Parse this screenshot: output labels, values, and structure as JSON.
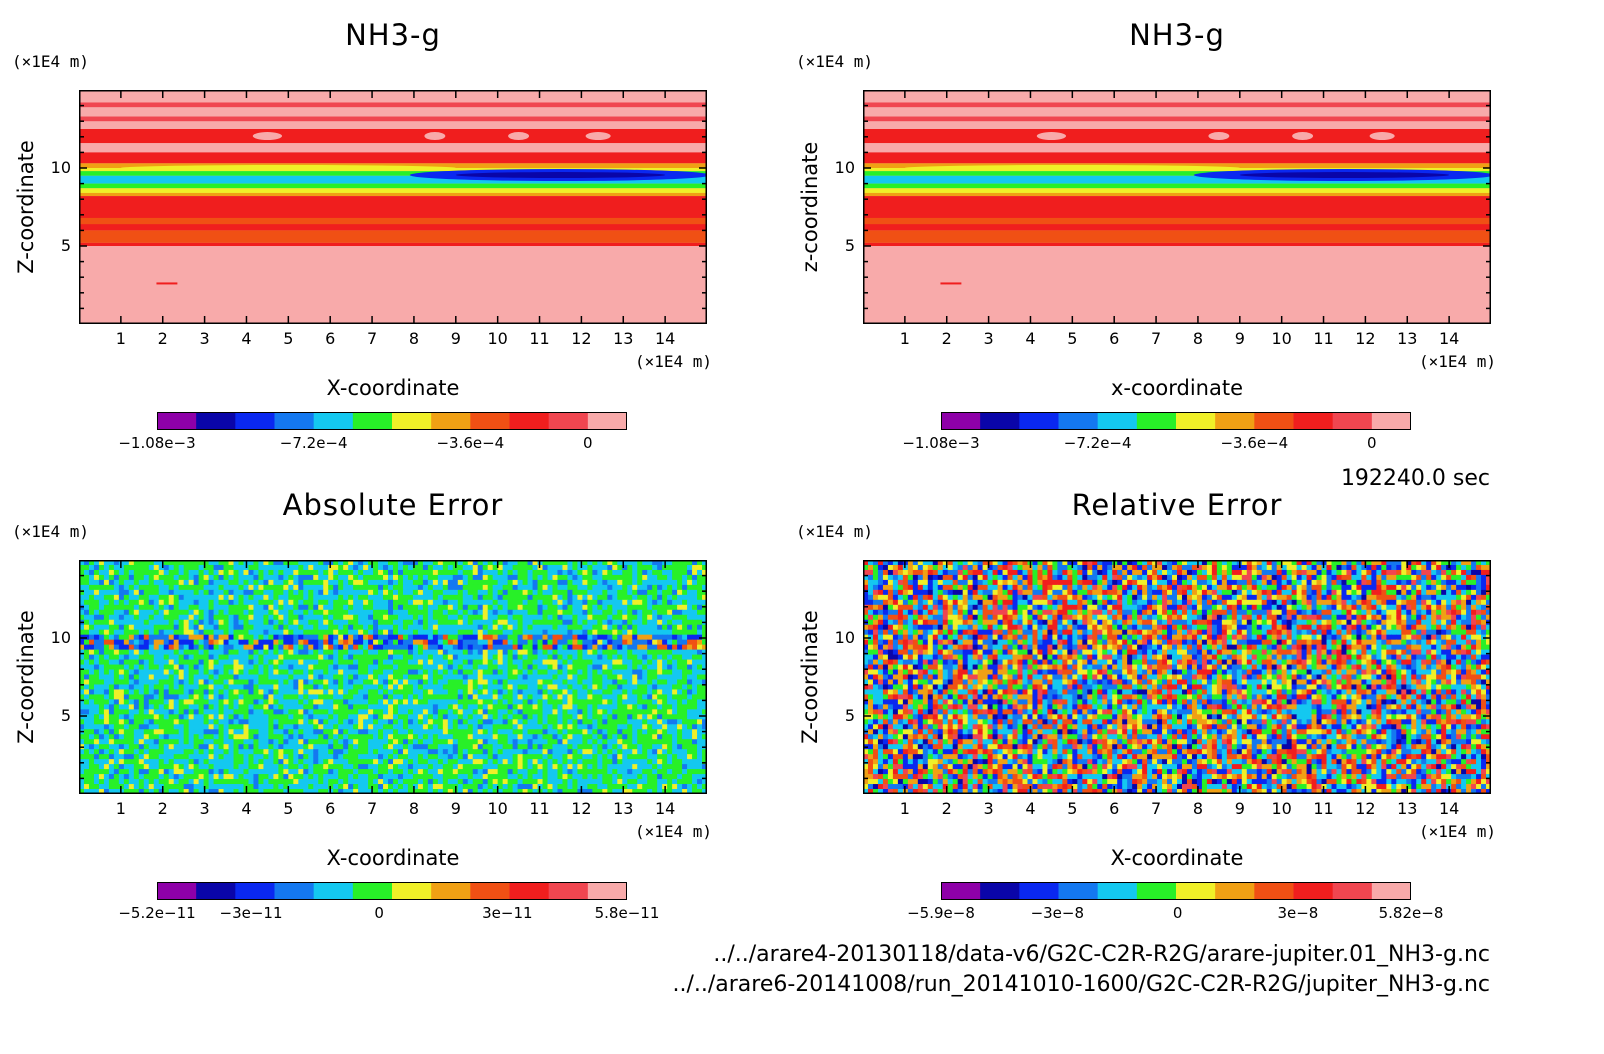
{
  "time_label": "192240.0 sec",
  "files": {
    "line1": "../../arare4-20130118/data-v6/G2C-C2R-R2G/arare-jupiter.01_NH3-g.nc",
    "line2": "../../arare6-20141008/run_20141010-1600/G2C-C2R-R2G/jupiter_NH3-g.nc"
  },
  "palette": [
    "#8e00a8",
    "#0a05a8",
    "#0a28f0",
    "#1478f0",
    "#14c8f0",
    "#28f028",
    "#f0f028",
    "#f0a014",
    "#f05014",
    "#f01e1e",
    "#f04650",
    "#f8aaaa"
  ],
  "chart_data": [
    {
      "type": "heatmap",
      "title": "NH3-g",
      "xlabel": "X-coordinate",
      "ylabel": "Z-coordinate",
      "x_unit": "(×1E4 m)",
      "y_unit": "(×1E4 m)",
      "xlim": [
        0,
        15
      ],
      "ylim": [
        0,
        15
      ],
      "x_ticks": [
        1,
        2,
        3,
        4,
        5,
        6,
        7,
        8,
        9,
        10,
        11,
        12,
        13,
        14
      ],
      "y_ticks": [
        5,
        10
      ],
      "pattern": "layered",
      "colorbar": {
        "min": -0.00108,
        "max": 0,
        "tick_values": [
          -0.00108,
          -0.00072,
          -0.00036,
          0
        ],
        "tick_labels": [
          "−1.08e−3",
          "−7.2e−4",
          "−3.6e−4",
          "0"
        ]
      }
    },
    {
      "type": "heatmap",
      "title": "NH3-g",
      "xlabel": "x-coordinate",
      "ylabel": "z-coordinate",
      "x_unit": "(×1E4 m)",
      "y_unit": "(×1E4 m)",
      "xlim": [
        0,
        15
      ],
      "ylim": [
        0,
        15
      ],
      "x_ticks": [
        1,
        2,
        3,
        4,
        5,
        6,
        7,
        8,
        9,
        10,
        11,
        12,
        13,
        14
      ],
      "y_ticks": [
        5,
        10
      ],
      "pattern": "layered",
      "colorbar": {
        "min": -0.00108,
        "max": 0,
        "tick_values": [
          -0.00108,
          -0.00072,
          -0.00036,
          0
        ],
        "tick_labels": [
          "−1.08e−3",
          "−7.2e−4",
          "−3.6e−4",
          "0"
        ]
      }
    },
    {
      "type": "heatmap",
      "title": "Absolute Error",
      "xlabel": "X-coordinate",
      "ylabel": "Z-coordinate",
      "x_unit": "(×1E4 m)",
      "y_unit": "(×1E4 m)",
      "xlim": [
        0,
        15
      ],
      "ylim": [
        0,
        15
      ],
      "x_ticks": [
        1,
        2,
        3,
        4,
        5,
        6,
        7,
        8,
        9,
        10,
        11,
        12,
        13,
        14
      ],
      "y_ticks": [
        5,
        10
      ],
      "pattern": "noise_low",
      "colorbar": {
        "min": -5.2e-11,
        "max": 5.8e-11,
        "tick_values": [
          -5.2e-11,
          -3e-11,
          0,
          3e-11,
          5.8e-11
        ],
        "tick_labels": [
          "−5.2e−11",
          "−3e−11",
          "0",
          "3e−11",
          "5.8e−11"
        ]
      }
    },
    {
      "type": "heatmap",
      "title": "Relative Error",
      "xlabel": "X-coordinate",
      "ylabel": "Z-coordinate",
      "x_unit": "(×1E4 m)",
      "y_unit": "(×1E4 m)",
      "xlim": [
        0,
        15
      ],
      "ylim": [
        0,
        15
      ],
      "x_ticks": [
        1,
        2,
        3,
        4,
        5,
        6,
        7,
        8,
        9,
        10,
        11,
        12,
        13,
        14
      ],
      "y_ticks": [
        5,
        10
      ],
      "pattern": "noise_high",
      "colorbar": {
        "min": -5.9e-08,
        "max": 5.82e-08,
        "tick_values": [
          -5.9e-08,
          -3e-08,
          0,
          3e-08,
          5.82e-08
        ],
        "tick_labels": [
          "−5.9e−8",
          "−3e−8",
          "0",
          "3e−8",
          "5.82e−8"
        ]
      }
    }
  ]
}
